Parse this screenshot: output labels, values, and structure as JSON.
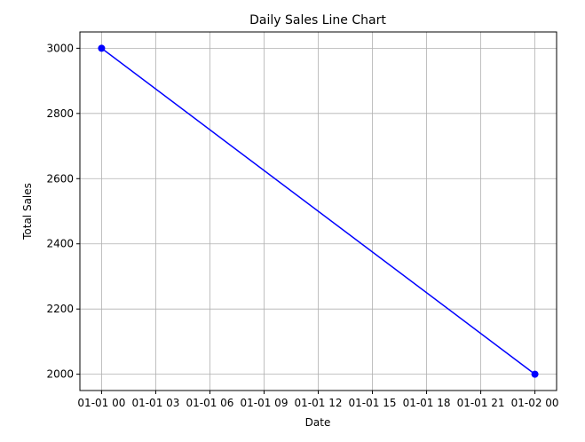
{
  "chart_data": {
    "type": "line",
    "title": "Daily Sales Line Chart",
    "xlabel": "Date",
    "ylabel": "Total Sales",
    "x": [
      "2000-01-01 00:00",
      "2000-01-02 00:00"
    ],
    "x_hours": [
      0,
      24
    ],
    "series": [
      {
        "values": [
          3000,
          2000
        ],
        "color": "#0000ff",
        "marker": "circle"
      }
    ],
    "xticks": {
      "hours": [
        0,
        3,
        6,
        9,
        12,
        15,
        18,
        21,
        24
      ],
      "labels": [
        "01-01 00",
        "01-01 03",
        "01-01 06",
        "01-01 09",
        "01-01 12",
        "01-01 15",
        "01-01 18",
        "01-01 21",
        "01-02 00"
      ]
    },
    "yticks": [
      2000,
      2200,
      2400,
      2600,
      2800,
      3000
    ],
    "xlim_hours": [
      -1.2,
      25.2
    ],
    "ylim": [
      1950,
      3050
    ],
    "grid": true
  }
}
